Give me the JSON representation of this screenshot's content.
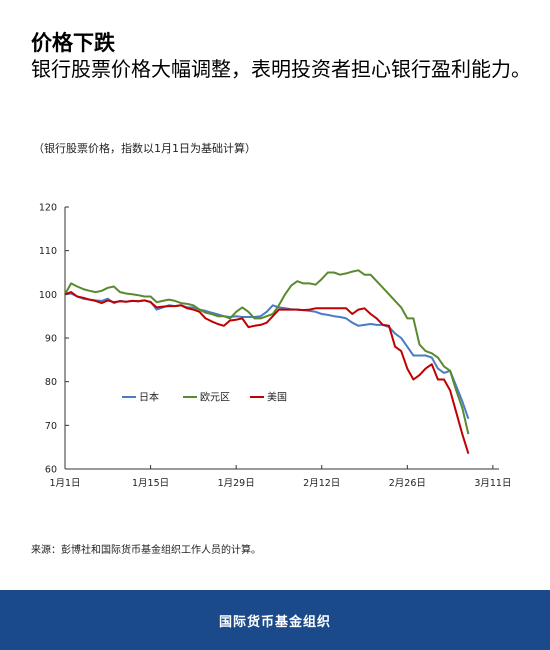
{
  "header": {
    "title": "价格下跌",
    "subtitle": "银行股票价格大幅调整，表明投资者担心银行盈利能力。"
  },
  "chart_title": "（银行股票价格，指数以1月1日为基础计算）",
  "source": "来源：彭博社和国际货币基金组织工作人员的计算。",
  "footer": {
    "label": "国际货币基金组织"
  },
  "chart_data": {
    "type": "line",
    "x_unit": "days since Jan 1 (2016)",
    "x_ticks": [
      {
        "x": 0,
        "label": "1月1日"
      },
      {
        "x": 14,
        "label": "1月15日"
      },
      {
        "x": 28,
        "label": "1月29日"
      },
      {
        "x": 42,
        "label": "2月12日"
      },
      {
        "x": 56,
        "label": "2月26日"
      },
      {
        "x": 70,
        "label": "3月11日"
      }
    ],
    "y_ticks": [
      60,
      70,
      80,
      90,
      100,
      110,
      120
    ],
    "xlim": [
      0,
      71
    ],
    "ylim": [
      60,
      120
    ],
    "legend_position": "left-middle",
    "series": [
      {
        "name": "日本",
        "color": "#4a7cc4",
        "points": [
          [
            0,
            100
          ],
          [
            1,
            100.2
          ],
          [
            2,
            99.5
          ],
          [
            3,
            99
          ],
          [
            4,
            98.8
          ],
          [
            5,
            98.6
          ],
          [
            6,
            98.5
          ],
          [
            7,
            99
          ],
          [
            8,
            98
          ],
          [
            9,
            98.5
          ],
          [
            10,
            98.3
          ],
          [
            11,
            98.5
          ],
          [
            12,
            98.4
          ],
          [
            13,
            98.6
          ],
          [
            14,
            98.3
          ],
          [
            15,
            96.5
          ],
          [
            16,
            97
          ],
          [
            17,
            97.5
          ],
          [
            18,
            97.3
          ],
          [
            19,
            97.5
          ],
          [
            20,
            97
          ],
          [
            21,
            97
          ],
          [
            22,
            96.5
          ],
          [
            23,
            96.2
          ],
          [
            24,
            95.8
          ],
          [
            25,
            95.4
          ],
          [
            26,
            95
          ],
          [
            27,
            94.8
          ],
          [
            28,
            95
          ],
          [
            29,
            94.8
          ],
          [
            30,
            94.8
          ],
          [
            31,
            94.8
          ],
          [
            32,
            95
          ],
          [
            33,
            96
          ],
          [
            34,
            97.5
          ],
          [
            35,
            97
          ],
          [
            36,
            96.8
          ],
          [
            37,
            96.6
          ],
          [
            38,
            96.5
          ],
          [
            39,
            96.4
          ],
          [
            40,
            96.2
          ],
          [
            41,
            96
          ],
          [
            42,
            95.5
          ],
          [
            43,
            95.3
          ],
          [
            44,
            95
          ],
          [
            45,
            94.8
          ],
          [
            46,
            94.5
          ],
          [
            47,
            93.5
          ],
          [
            48,
            92.8
          ],
          [
            49,
            93
          ],
          [
            50,
            93.2
          ],
          [
            51,
            93
          ],
          [
            52,
            93
          ],
          [
            53,
            92.5
          ],
          [
            54,
            91
          ],
          [
            55,
            90
          ],
          [
            56,
            88
          ],
          [
            57,
            86
          ],
          [
            58,
            86
          ],
          [
            59,
            86
          ],
          [
            60,
            85.5
          ],
          [
            61,
            83
          ],
          [
            62,
            82
          ],
          [
            63,
            82.5
          ],
          [
            64,
            79
          ],
          [
            65,
            75.5
          ],
          [
            66,
            71.5
          ]
        ]
      },
      {
        "name": "欧元区",
        "color": "#5a8a2e",
        "points": [
          [
            0,
            100
          ],
          [
            1,
            102.5
          ],
          [
            2,
            101.8
          ],
          [
            3,
            101.2
          ],
          [
            4,
            100.8
          ],
          [
            5,
            100.5
          ],
          [
            6,
            100.8
          ],
          [
            7,
            101.5
          ],
          [
            8,
            101.8
          ],
          [
            9,
            100.5
          ],
          [
            10,
            100.2
          ],
          [
            11,
            100
          ],
          [
            12,
            99.8
          ],
          [
            13,
            99.5
          ],
          [
            14,
            99.5
          ],
          [
            15,
            98.2
          ],
          [
            16,
            98.5
          ],
          [
            17,
            98.8
          ],
          [
            18,
            98.5
          ],
          [
            19,
            98
          ],
          [
            20,
            97.8
          ],
          [
            21,
            97.5
          ],
          [
            22,
            96.5
          ],
          [
            23,
            95.8
          ],
          [
            24,
            95.5
          ],
          [
            25,
            95
          ],
          [
            26,
            95
          ],
          [
            27,
            94.5
          ],
          [
            28,
            96
          ],
          [
            29,
            97
          ],
          [
            30,
            96
          ],
          [
            31,
            94.5
          ],
          [
            32,
            94.5
          ],
          [
            33,
            95
          ],
          [
            34,
            95.5
          ],
          [
            35,
            97.5
          ],
          [
            36,
            100
          ],
          [
            37,
            102
          ],
          [
            38,
            103
          ],
          [
            39,
            102.5
          ],
          [
            40,
            102.5
          ],
          [
            41,
            102.2
          ],
          [
            42,
            103.5
          ],
          [
            43,
            105
          ],
          [
            44,
            105
          ],
          [
            45,
            104.5
          ],
          [
            46,
            104.8
          ],
          [
            47,
            105.2
          ],
          [
            48,
            105.5
          ],
          [
            49,
            104.5
          ],
          [
            50,
            104.5
          ],
          [
            51,
            103
          ],
          [
            52,
            101.5
          ],
          [
            53,
            100
          ],
          [
            54,
            98.5
          ],
          [
            55,
            97
          ],
          [
            56,
            94.5
          ],
          [
            57,
            94.5
          ],
          [
            58,
            88.5
          ],
          [
            59,
            87
          ],
          [
            60,
            86.5
          ],
          [
            61,
            85.5
          ],
          [
            62,
            83.5
          ],
          [
            63,
            82.5
          ],
          [
            64,
            78
          ],
          [
            65,
            74
          ],
          [
            66,
            68
          ]
        ]
      },
      {
        "name": "美国",
        "color": "#c00000",
        "points": [
          [
            0,
            100
          ],
          [
            1,
            100.5
          ],
          [
            2,
            99.5
          ],
          [
            3,
            99.2
          ],
          [
            4,
            98.8
          ],
          [
            5,
            98.5
          ],
          [
            6,
            98
          ],
          [
            7,
            98.6
          ],
          [
            8,
            98.2
          ],
          [
            9,
            98.4
          ],
          [
            10,
            98.3
          ],
          [
            11,
            98.5
          ],
          [
            12,
            98.4
          ],
          [
            13,
            98.6
          ],
          [
            14,
            98.2
          ],
          [
            15,
            97
          ],
          [
            16,
            97.2
          ],
          [
            17,
            97.3
          ],
          [
            18,
            97.3
          ],
          [
            19,
            97.5
          ],
          [
            20,
            96.8
          ],
          [
            21,
            96.5
          ],
          [
            22,
            96
          ],
          [
            23,
            94.5
          ],
          [
            24,
            93.8
          ],
          [
            25,
            93.2
          ],
          [
            26,
            92.8
          ],
          [
            27,
            94
          ],
          [
            28,
            94.2
          ],
          [
            29,
            94.5
          ],
          [
            30,
            92.5
          ],
          [
            31,
            92.8
          ],
          [
            32,
            93
          ],
          [
            33,
            93.5
          ],
          [
            34,
            95
          ],
          [
            35,
            96.5
          ],
          [
            36,
            96.5
          ],
          [
            37,
            96.5
          ],
          [
            38,
            96.5
          ],
          [
            39,
            96.4
          ],
          [
            40,
            96.5
          ],
          [
            41,
            96.8
          ],
          [
            42,
            96.8
          ],
          [
            43,
            96.8
          ],
          [
            44,
            96.8
          ],
          [
            45,
            96.8
          ],
          [
            46,
            96.8
          ],
          [
            47,
            95.5
          ],
          [
            48,
            96.5
          ],
          [
            49,
            96.8
          ],
          [
            50,
            95.5
          ],
          [
            51,
            94.5
          ],
          [
            52,
            93
          ],
          [
            53,
            92.8
          ],
          [
            54,
            88
          ],
          [
            55,
            87
          ],
          [
            56,
            83
          ],
          [
            57,
            80.5
          ],
          [
            58,
            81.5
          ],
          [
            59,
            83
          ],
          [
            60,
            84
          ],
          [
            61,
            80.5
          ],
          [
            62,
            80.5
          ],
          [
            63,
            78
          ],
          [
            64,
            73
          ],
          [
            65,
            68
          ],
          [
            66,
            63.5
          ]
        ]
      }
    ]
  }
}
